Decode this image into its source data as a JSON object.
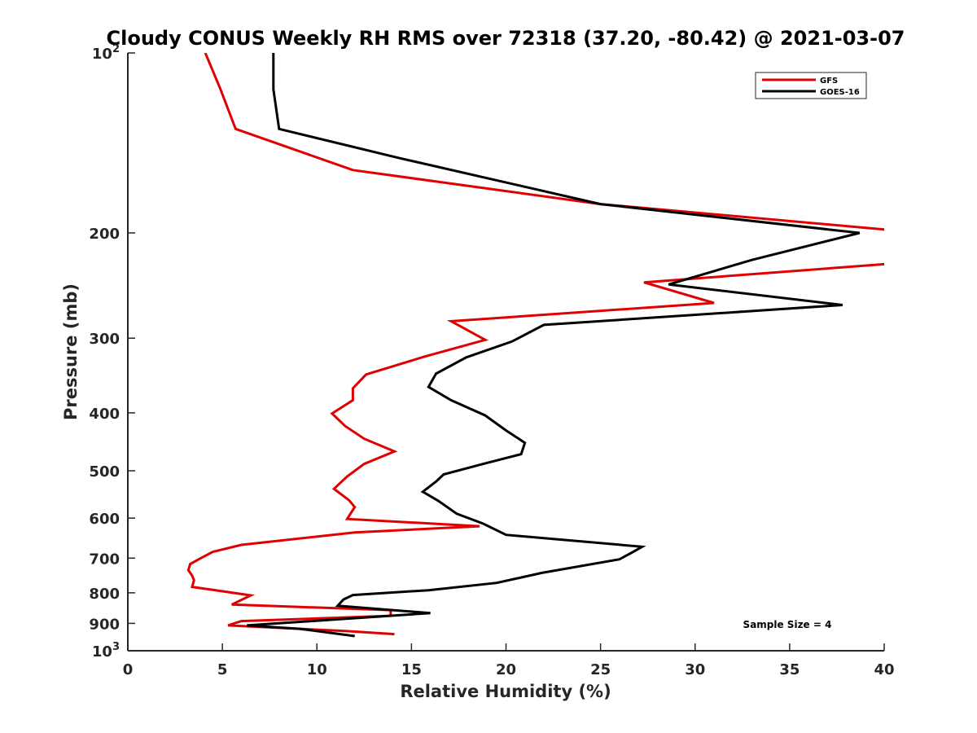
{
  "chart_data": {
    "type": "line",
    "title": "Cloudy CONUS Weekly RH RMS over 72318 (37.20, -80.42) @ 2021-03-07",
    "xlabel": "Relative Humidity (%)",
    "ylabel": "Pressure (mb)",
    "xlim": [
      0,
      40
    ],
    "ylim": [
      100,
      1000
    ],
    "yscale": "log",
    "yreverse": true,
    "x_ticks": [
      "0",
      "5",
      "10",
      "15",
      "20",
      "25",
      "30",
      "35",
      "40"
    ],
    "y_ticks": [
      {
        "value": 100,
        "label": "10",
        "sup": "2"
      },
      {
        "value": 200,
        "label": "200",
        "sup": ""
      },
      {
        "value": 300,
        "label": "300",
        "sup": ""
      },
      {
        "value": 400,
        "label": "400",
        "sup": ""
      },
      {
        "value": 500,
        "label": "500",
        "sup": ""
      },
      {
        "value": 600,
        "label": "600",
        "sup": ""
      },
      {
        "value": 700,
        "label": "700",
        "sup": ""
      },
      {
        "value": 800,
        "label": "800",
        "sup": ""
      },
      {
        "value": 900,
        "label": "900",
        "sup": ""
      },
      {
        "value": 1000,
        "label": "10",
        "sup": "3"
      }
    ],
    "legend_position": "top-right",
    "annotation": "Sample Size = 4",
    "series": [
      {
        "name": "GFS",
        "color": "#e00000",
        "points": [
          [
            4.1,
            100
          ],
          [
            4.9,
            115
          ],
          [
            5.7,
            134
          ],
          [
            11.9,
            157
          ],
          [
            25.0,
            179
          ],
          [
            40.5,
            198
          ],
          [
            40.5,
            225
          ],
          [
            27.3,
            242
          ],
          [
            31.0,
            262
          ],
          [
            17.1,
            281
          ],
          [
            18.9,
            302
          ],
          [
            15.7,
            322
          ],
          [
            12.6,
            345
          ],
          [
            11.9,
            364
          ],
          [
            11.9,
            381
          ],
          [
            10.8,
            401
          ],
          [
            11.5,
            421
          ],
          [
            12.5,
            442
          ],
          [
            14.1,
            464
          ],
          [
            12.5,
            487
          ],
          [
            11.6,
            511
          ],
          [
            10.9,
            536
          ],
          [
            11.7,
            560
          ],
          [
            12.0,
            575
          ],
          [
            11.6,
            602
          ],
          [
            18.6,
            619
          ],
          [
            12.0,
            634
          ],
          [
            6.0,
            665
          ],
          [
            4.5,
            683
          ],
          [
            3.9,
            699
          ],
          [
            3.3,
            716
          ],
          [
            3.2,
            733
          ],
          [
            3.4,
            749
          ],
          [
            3.5,
            762
          ],
          [
            3.4,
            782
          ],
          [
            6.5,
            808
          ],
          [
            5.5,
            837
          ],
          [
            13.9,
            855
          ],
          [
            13.9,
            874
          ],
          [
            6.0,
            892
          ],
          [
            5.3,
            907
          ],
          [
            11.5,
            927
          ],
          [
            14.1,
            938
          ]
        ]
      },
      {
        "name": "GOES-16",
        "color": "#000000",
        "points": [
          [
            7.7,
            100
          ],
          [
            7.7,
            115
          ],
          [
            8.0,
            134
          ],
          [
            14.4,
            150
          ],
          [
            25.0,
            179
          ],
          [
            38.7,
            200
          ],
          [
            33.0,
            222
          ],
          [
            28.6,
            244
          ],
          [
            37.8,
            264
          ],
          [
            22.0,
            285
          ],
          [
            20.3,
            304
          ],
          [
            17.9,
            323
          ],
          [
            16.3,
            344
          ],
          [
            15.9,
            362
          ],
          [
            17.1,
            381
          ],
          [
            18.9,
            404
          ],
          [
            20.0,
            428
          ],
          [
            21.0,
            449
          ],
          [
            20.8,
            469
          ],
          [
            18.8,
            487
          ],
          [
            16.7,
            507
          ],
          [
            16.3,
            521
          ],
          [
            15.6,
            542
          ],
          [
            16.4,
            561
          ],
          [
            17.4,
            590
          ],
          [
            18.8,
            613
          ],
          [
            20.0,
            640
          ],
          [
            27.2,
            670
          ],
          [
            26.7,
            684
          ],
          [
            26.0,
            703
          ],
          [
            21.9,
            741
          ],
          [
            19.5,
            770
          ],
          [
            15.9,
            792
          ],
          [
            11.9,
            807
          ],
          [
            11.4,
            821
          ],
          [
            11.1,
            841
          ],
          [
            16.0,
            865
          ],
          [
            6.3,
            907
          ],
          [
            9.1,
            919
          ],
          [
            12.0,
            945
          ]
        ]
      }
    ]
  }
}
